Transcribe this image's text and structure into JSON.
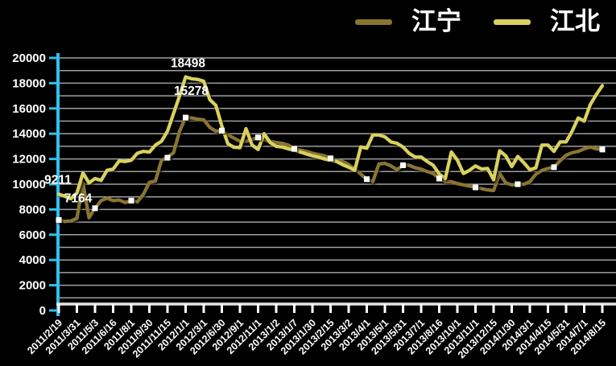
{
  "legend": {
    "items": [
      {
        "label": "江宁",
        "color": "#8A7530"
      },
      {
        "label": "江北",
        "color": "#D9D15F"
      }
    ]
  },
  "chart_data": {
    "type": "line",
    "title": "",
    "xlabel": "",
    "ylabel": "",
    "ylim": [
      0,
      20000
    ],
    "gridline_step": 1000,
    "grid": true,
    "legend_position": "top-right",
    "y_ticks": [
      0,
      2000,
      4000,
      6000,
      8000,
      10000,
      12000,
      14000,
      16000,
      18000,
      20000
    ],
    "x_tick_labels": [
      "2011/2/19",
      "2011/3/31",
      "2011/5/3",
      "2011/6/16",
      "2011/8/1",
      "2011/9/30",
      "2011/11/15",
      "2012/1/1",
      "2012/3/1",
      "2012/6/30",
      "2012/9/1",
      "2012/11/1",
      "2013/1/2",
      "2013/1/7",
      "2013/1/30",
      "2013/2/15",
      "2013/3/2",
      "2013/4/1",
      "2013/5/1",
      "2013/5/31",
      "2013/7/1",
      "2013/8/16",
      "2013/10/1",
      "2013/11/1",
      "2013/12/15",
      "2014/1/30",
      "2014/3/1",
      "2014/4/15",
      "2014/5/31",
      "2014/7/1",
      "2014/8/15"
    ],
    "points_per_tick": 3,
    "axis_colors": {
      "y_axis": "#2EC1F0",
      "x_axis": "#E6E6E6",
      "x_tick": "#FFFFFF",
      "gridline": "#A0A0A0",
      "label": "#FFFFFF"
    },
    "series": [
      {
        "name": "江宁",
        "color": "#8A7530",
        "marker": "white-square",
        "marker_indices": [
          0,
          6,
          12,
          18,
          21,
          27,
          33,
          39,
          45,
          51,
          57,
          63,
          69,
          76,
          82,
          90
        ],
        "point_labels": [
          {
            "index": 0,
            "text": "7164",
            "dx": 24,
            "dy": -22
          },
          {
            "index": 21,
            "text": "15278",
            "dx": 7,
            "dy": -28
          }
        ],
        "values": [
          7164,
          7050,
          7100,
          7300,
          10100,
          7350,
          8100,
          8700,
          8900,
          8700,
          8750,
          8550,
          8700,
          8600,
          9200,
          10150,
          10250,
          11900,
          12100,
          12500,
          14200,
          15278,
          15250,
          15150,
          15100,
          14500,
          14200,
          14250,
          13900,
          13650,
          13400,
          13400,
          13550,
          13700,
          13500,
          13400,
          13300,
          13240,
          13100,
          12800,
          12700,
          12600,
          12450,
          12350,
          12250,
          12050,
          11900,
          11800,
          11550,
          11200,
          10800,
          10400,
          10200,
          11600,
          11650,
          11450,
          11150,
          11500,
          11500,
          11300,
          11200,
          11000,
          10850,
          10450,
          10200,
          10200,
          10050,
          9950,
          9850,
          9750,
          9650,
          9550,
          9500,
          10850,
          10100,
          9950,
          10000,
          10000,
          10200,
          10800,
          11100,
          11250,
          11350,
          11850,
          12300,
          12500,
          12600,
          12800,
          12950,
          12800,
          12750
        ]
      },
      {
        "name": "江北",
        "color": "#D9D15F",
        "marker": "none",
        "marker_indices": [],
        "point_labels": [
          {
            "index": 0,
            "text": "9211",
            "dx": -1,
            "dy": -13
          },
          {
            "index": 21,
            "text": "18498",
            "dx": 3,
            "dy": -12
          }
        ],
        "values": [
          9211,
          9050,
          8850,
          9300,
          10900,
          10100,
          10450,
          10300,
          11100,
          11200,
          11850,
          11800,
          11900,
          12450,
          12600,
          12550,
          13100,
          13400,
          14200,
          15600,
          17000,
          18498,
          18350,
          18300,
          18150,
          16700,
          16250,
          14600,
          13200,
          12930,
          12900,
          14400,
          13100,
          12750,
          14000,
          13300,
          13000,
          12950,
          12800,
          12700,
          12550,
          12400,
          12250,
          12150,
          12000,
          11900,
          11800,
          11550,
          11350,
          11100,
          12950,
          12850,
          13900,
          13900,
          13750,
          13350,
          13240,
          12950,
          12450,
          12150,
          12150,
          11800,
          11500,
          10800,
          10450,
          12550,
          11900,
          10850,
          11100,
          11450,
          11200,
          11250,
          10350,
          12650,
          12250,
          11400,
          12200,
          11700,
          11150,
          11300,
          13100,
          13100,
          12600,
          13350,
          13350,
          14200,
          15250,
          15000,
          16300,
          17100,
          17800
        ]
      }
    ]
  }
}
